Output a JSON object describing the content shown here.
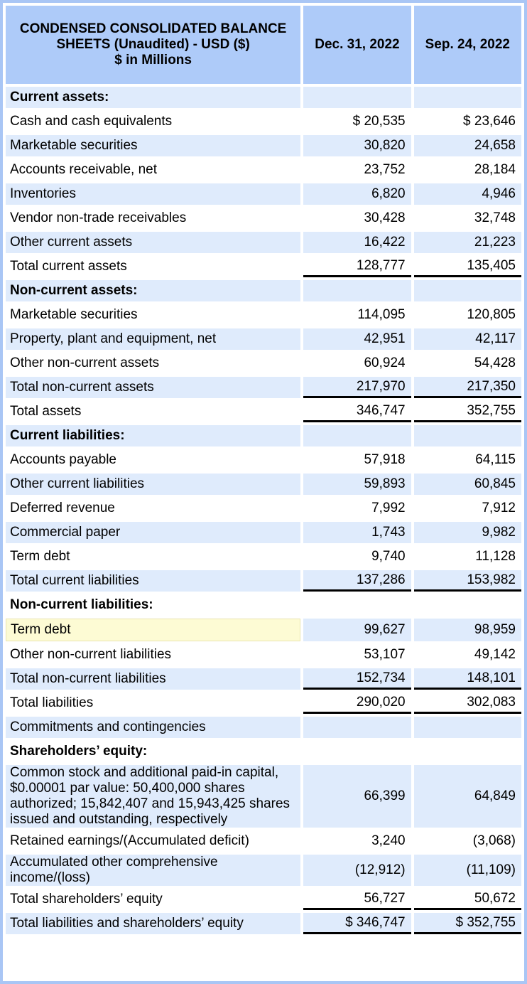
{
  "header": {
    "title": "CONDENSED CONSOLIDATED BALANCE SHEETS (Unaudited) - USD ($)",
    "subtitle": "$ in Millions",
    "columns": [
      "Dec. 31, 2022",
      "Sep. 24, 2022"
    ]
  },
  "colors": {
    "header_bg": "#aecbf9",
    "shaded_row": "#dfebfc",
    "border": "#a9c6f5",
    "highlight": "#fdfbd4"
  },
  "rows": [
    {
      "label": "Current assets:",
      "heading": true,
      "values": [
        "",
        ""
      ]
    },
    {
      "label": "Cash and cash equivalents",
      "values": [
        "$ 20,535",
        "$ 23,646"
      ]
    },
    {
      "label": "Marketable securities",
      "values": [
        "30,820",
        "24,658"
      ]
    },
    {
      "label": "Accounts receivable, net",
      "values": [
        "23,752",
        "28,184"
      ]
    },
    {
      "label": "Inventories",
      "values": [
        "6,820",
        "4,946"
      ]
    },
    {
      "label": "Vendor non-trade receivables",
      "values": [
        "30,428",
        "32,748"
      ]
    },
    {
      "label": "Other current assets",
      "values": [
        "16,422",
        "21,223"
      ]
    },
    {
      "label": "Total current assets",
      "total": true,
      "values": [
        "128,777",
        "135,405"
      ]
    },
    {
      "label": "Non-current assets:",
      "heading": true,
      "values": [
        "",
        ""
      ]
    },
    {
      "label": "Marketable securities",
      "values": [
        "114,095",
        "120,805"
      ]
    },
    {
      "label": "Property, plant and equipment, net",
      "values": [
        "42,951",
        "42,117"
      ]
    },
    {
      "label": "Other non-current assets",
      "values": [
        "60,924",
        "54,428"
      ]
    },
    {
      "label": "Total non-current assets",
      "total": true,
      "values": [
        "217,970",
        "217,350"
      ]
    },
    {
      "label": "Total assets",
      "total": true,
      "values": [
        "346,747",
        "352,755"
      ]
    },
    {
      "label": "Current liabilities:",
      "heading": true,
      "values": [
        "",
        ""
      ]
    },
    {
      "label": "Accounts payable",
      "values": [
        "57,918",
        "64,115"
      ]
    },
    {
      "label": "Other current liabilities",
      "values": [
        "59,893",
        "60,845"
      ]
    },
    {
      "label": "Deferred revenue",
      "values": [
        "7,992",
        "7,912"
      ]
    },
    {
      "label": "Commercial paper",
      "values": [
        "1,743",
        "9,982"
      ]
    },
    {
      "label": "Term debt",
      "values": [
        "9,740",
        "11,128"
      ]
    },
    {
      "label": "Total current liabilities",
      "total": true,
      "values": [
        "137,286",
        "153,982"
      ]
    },
    {
      "label": "Non-current liabilities:",
      "heading": true,
      "values": [
        "",
        ""
      ]
    },
    {
      "label": "Term debt",
      "highlighted": true,
      "values": [
        "99,627",
        "98,959"
      ]
    },
    {
      "label": "Other non-current liabilities",
      "values": [
        "53,107",
        "49,142"
      ]
    },
    {
      "label": "Total non-current liabilities",
      "total": true,
      "values": [
        "152,734",
        "148,101"
      ]
    },
    {
      "label": "Total liabilities",
      "total": true,
      "values": [
        "290,020",
        "302,083"
      ]
    },
    {
      "label": "Commitments and contingencies",
      "values": [
        "",
        ""
      ]
    },
    {
      "label": "Shareholders’ equity:",
      "heading": true,
      "values": [
        "",
        ""
      ]
    },
    {
      "label": "Common stock and additional paid-in capital, $0.00001 par value: 50,400,000 shares authorized; 15,842,407 and 15,943,425 shares issued and outstanding, respectively",
      "values": [
        "66,399",
        "64,849"
      ]
    },
    {
      "label": "Retained earnings/(Accumulated deficit)",
      "values": [
        "3,240",
        "(3,068)"
      ]
    },
    {
      "label": "Accumulated other comprehensive income/(loss)",
      "values": [
        "(12,912)",
        "(11,109)"
      ]
    },
    {
      "label": "Total shareholders’ equity",
      "total": true,
      "values": [
        "56,727",
        "50,672"
      ]
    },
    {
      "label": "Total liabilities and shareholders’ equity",
      "total": true,
      "values": [
        "$ 346,747",
        "$ 352,755"
      ]
    }
  ]
}
